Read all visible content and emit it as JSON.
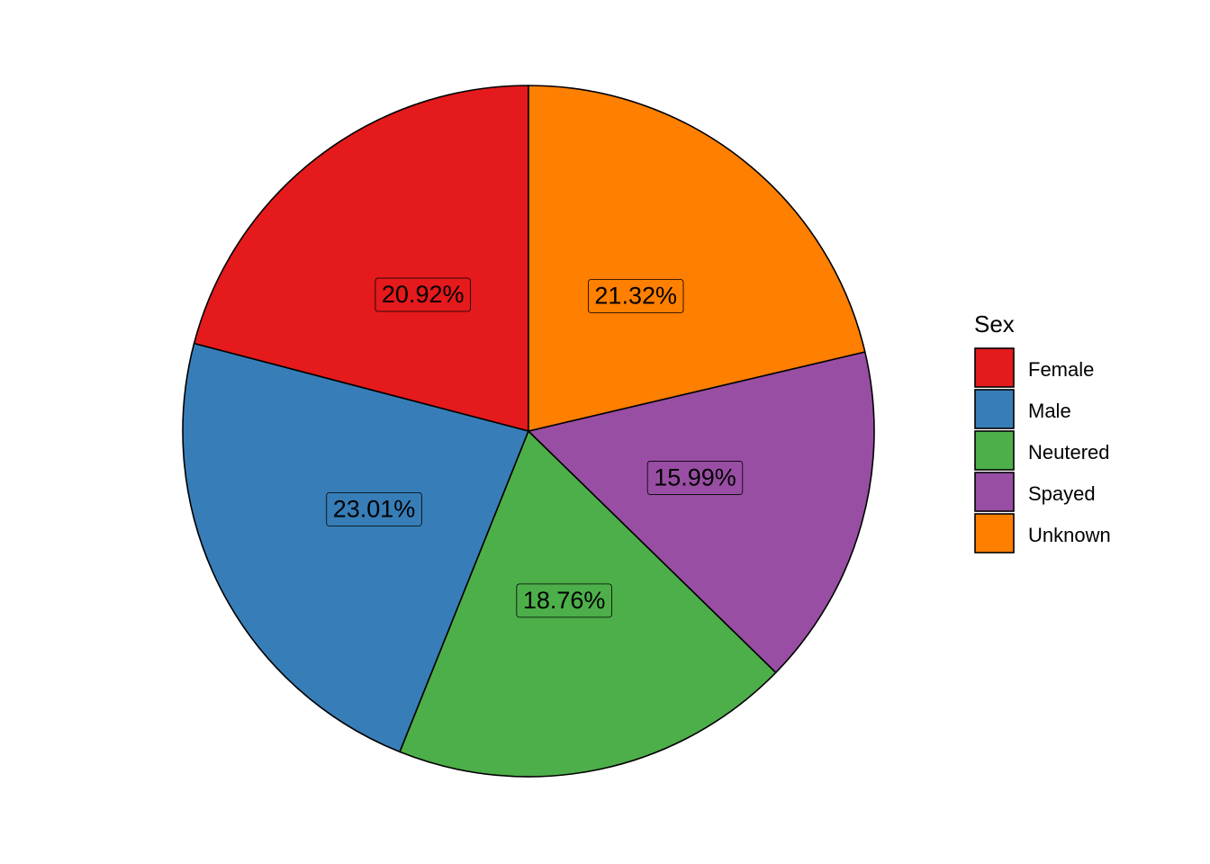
{
  "chart_data": {
    "type": "pie",
    "categories": [
      "Female",
      "Male",
      "Neutered",
      "Spayed",
      "Unknown"
    ],
    "values": [
      20.92,
      23.01,
      18.76,
      15.99,
      21.32
    ],
    "labels": [
      "20.92%",
      "23.01%",
      "18.76%",
      "15.99%",
      "21.32%"
    ],
    "colors": [
      "#E41A1C",
      "#377EB8",
      "#4DAF4A",
      "#984EA3",
      "#FF7F00"
    ],
    "start": "12 o'clock",
    "direction": "counterclockwise",
    "legend": {
      "title": "Sex",
      "position": "right",
      "entries": [
        "Female",
        "Male",
        "Neutered",
        "Spayed",
        "Unknown"
      ]
    }
  }
}
